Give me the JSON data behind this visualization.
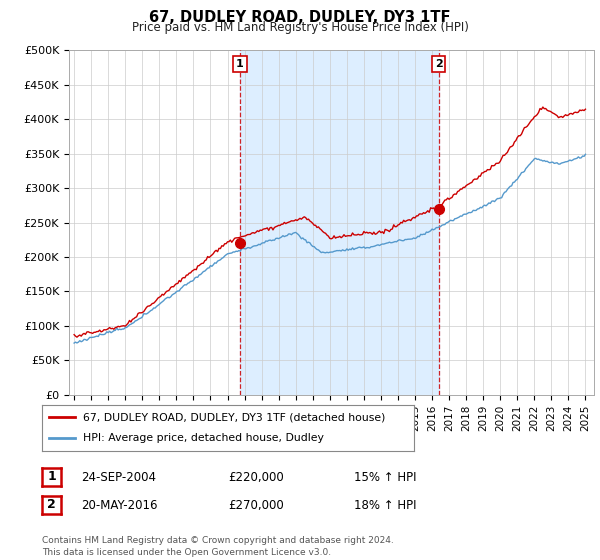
{
  "title": "67, DUDLEY ROAD, DUDLEY, DY3 1TF",
  "subtitle": "Price paid vs. HM Land Registry's House Price Index (HPI)",
  "ylabel_ticks": [
    "£0",
    "£50K",
    "£100K",
    "£150K",
    "£200K",
    "£250K",
    "£300K",
    "£350K",
    "£400K",
    "£450K",
    "£500K"
  ],
  "ytick_values": [
    0,
    50000,
    100000,
    150000,
    200000,
    250000,
    300000,
    350000,
    400000,
    450000,
    500000
  ],
  "ylim": [
    0,
    500000
  ],
  "xlim_start": 1994.7,
  "xlim_end": 2025.5,
  "background_color": "#ffffff",
  "plot_bg_color": "#ffffff",
  "shade_color": "#ddeeff",
  "hpi_line_color": "#5599cc",
  "price_line_color": "#cc0000",
  "vline_color": "#cc0000",
  "purchase1_x": 2004.73,
  "purchase1_y": 220000,
  "purchase1_label": "1",
  "purchase2_x": 2016.38,
  "purchase2_y": 270000,
  "purchase2_label": "2",
  "legend_line1": "67, DUDLEY ROAD, DUDLEY, DY3 1TF (detached house)",
  "legend_line2": "HPI: Average price, detached house, Dudley",
  "table_row1": [
    "1",
    "24-SEP-2004",
    "£220,000",
    "15% ↑ HPI"
  ],
  "table_row2": [
    "2",
    "20-MAY-2016",
    "£270,000",
    "18% ↑ HPI"
  ],
  "footer": "Contains HM Land Registry data © Crown copyright and database right 2024.\nThis data is licensed under the Open Government Licence v3.0.",
  "xtick_years": [
    1995,
    1996,
    1997,
    1998,
    1999,
    2000,
    2001,
    2002,
    2003,
    2004,
    2005,
    2006,
    2007,
    2008,
    2009,
    2010,
    2011,
    2012,
    2013,
    2014,
    2015,
    2016,
    2017,
    2018,
    2019,
    2020,
    2021,
    2022,
    2023,
    2024,
    2025
  ]
}
